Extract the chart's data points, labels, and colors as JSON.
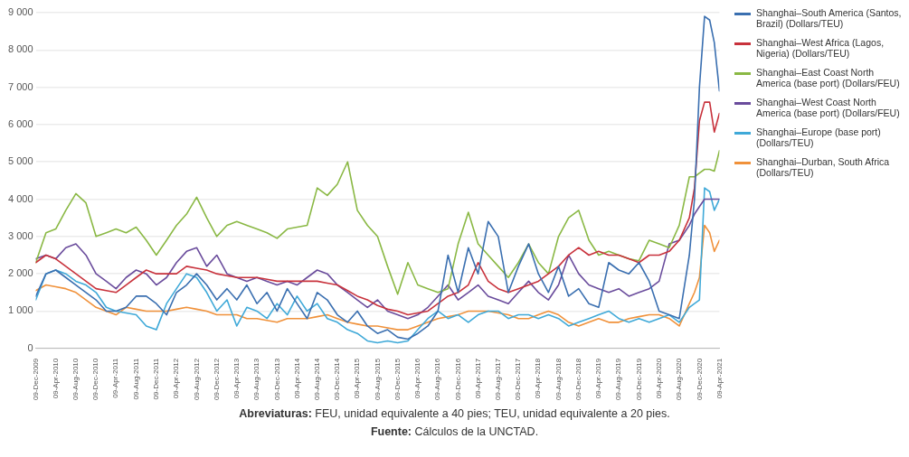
{
  "chart_data": {
    "type": "line",
    "x": [
      "2009-12-09",
      "2010-02-09",
      "2010-04-09",
      "2010-06-09",
      "2010-08-09",
      "2010-10-09",
      "2010-12-09",
      "2011-02-09",
      "2011-04-09",
      "2011-06-09",
      "2011-08-09",
      "2011-10-09",
      "2011-12-09",
      "2012-02-09",
      "2012-04-09",
      "2012-06-09",
      "2012-08-09",
      "2012-10-09",
      "2012-12-09",
      "2013-02-09",
      "2013-04-09",
      "2013-06-09",
      "2013-08-09",
      "2013-10-09",
      "2013-12-09",
      "2014-02-09",
      "2014-04-09",
      "2014-06-09",
      "2014-08-09",
      "2014-10-09",
      "2014-12-09",
      "2015-02-09",
      "2015-04-09",
      "2015-06-09",
      "2015-08-09",
      "2015-10-09",
      "2015-12-09",
      "2016-02-09",
      "2016-04-09",
      "2016-06-09",
      "2016-08-09",
      "2016-10-09",
      "2016-12-09",
      "2017-02-09",
      "2017-04-09",
      "2017-06-09",
      "2017-08-09",
      "2017-10-09",
      "2017-12-09",
      "2018-02-09",
      "2018-04-09",
      "2018-06-09",
      "2018-08-09",
      "2018-10-09",
      "2018-12-09",
      "2019-02-09",
      "2019-04-09",
      "2019-06-09",
      "2019-08-09",
      "2019-10-09",
      "2019-12-09",
      "2020-02-09",
      "2020-04-09",
      "2020-06-09",
      "2020-08-09",
      "2020-10-09",
      "2020-11-09",
      "2020-12-09",
      "2021-01-09",
      "2021-02-09",
      "2021-03-09",
      "2021-04-09"
    ],
    "series": [
      {
        "name": "Shanghai–South America (Santos, Brazil) (Dollars/TEU)",
        "color": "#3a6fb0",
        "values": [
          1400,
          2000,
          2100,
          1900,
          1700,
          1500,
          1300,
          1000,
          1000,
          1100,
          1400,
          1400,
          1200,
          900,
          1500,
          1700,
          2000,
          1700,
          1300,
          1600,
          1300,
          1700,
          1200,
          1500,
          1000,
          1600,
          1200,
          800,
          1500,
          1300,
          900,
          700,
          1000,
          600,
          400,
          500,
          300,
          250,
          400,
          600,
          1000,
          2500,
          1500,
          2700,
          2000,
          3400,
          3000,
          1500,
          2200,
          2800,
          2000,
          1500,
          2200,
          1400,
          1600,
          1200,
          1100,
          2300,
          2100,
          2000,
          2300,
          1800,
          1000,
          900,
          800,
          2500,
          4000,
          7000,
          8900,
          8800,
          8200,
          6900
        ]
      },
      {
        "name": "Shanghai–West Africa (Lagos, Nigeria) (Dollars/TEU)",
        "color": "#c8323c",
        "values": [
          2300,
          2500,
          2400,
          2200,
          2000,
          1800,
          1600,
          1550,
          1500,
          1700,
          1900,
          2100,
          2000,
          2000,
          2000,
          2200,
          2150,
          2100,
          2000,
          1950,
          1900,
          1900,
          1900,
          1850,
          1800,
          1800,
          1800,
          1800,
          1800,
          1750,
          1700,
          1550,
          1400,
          1300,
          1150,
          1050,
          1000,
          900,
          950,
          1000,
          1200,
          1400,
          1500,
          1700,
          2300,
          1800,
          1600,
          1500,
          1600,
          1700,
          1800,
          2000,
          2200,
          2500,
          2700,
          2500,
          2600,
          2500,
          2500,
          2400,
          2300,
          2500,
          2500,
          2600,
          2900,
          3500,
          4300,
          6100,
          6600,
          6600,
          5800,
          6300
        ]
      },
      {
        "name": "Shanghai–East Coast North America (base port) (Dollars/FEU)",
        "color": "#8ab844",
        "values": [
          2300,
          3100,
          3200,
          3700,
          4150,
          3900,
          3000,
          3100,
          3200,
          3100,
          3250,
          2900,
          2500,
          2900,
          3300,
          3600,
          4050,
          3500,
          3000,
          3300,
          3400,
          3300,
          3200,
          3100,
          2950,
          3200,
          3250,
          3300,
          4300,
          4100,
          4400,
          5000,
          3700,
          3300,
          3000,
          2200,
          1450,
          2300,
          1700,
          1600,
          1500,
          1600,
          2800,
          3650,
          2800,
          2500,
          2200,
          1900,
          2300,
          2800,
          2300,
          2000,
          3000,
          3500,
          3700,
          2900,
          2500,
          2600,
          2500,
          2400,
          2350,
          2900,
          2800,
          2700,
          3300,
          4600,
          4600,
          4700,
          4800,
          4800,
          4750,
          5300
        ]
      },
      {
        "name": "Shanghai–West Coast North America (base port) (Dollars/FEU)",
        "color": "#6a4c9c",
        "values": [
          2400,
          2500,
          2400,
          2700,
          2800,
          2500,
          2000,
          1800,
          1600,
          1900,
          2100,
          2000,
          1700,
          1900,
          2300,
          2600,
          2700,
          2200,
          2500,
          2000,
          1900,
          1800,
          1900,
          1800,
          1700,
          1800,
          1700,
          1900,
          2100,
          2000,
          1700,
          1500,
          1300,
          1100,
          1300,
          1000,
          900,
          800,
          900,
          1100,
          1400,
          1700,
          1300,
          1500,
          1700,
          1400,
          1300,
          1200,
          1500,
          1800,
          1500,
          1300,
          1700,
          2500,
          2000,
          1700,
          1600,
          1500,
          1600,
          1400,
          1500,
          1600,
          1800,
          2800,
          2900,
          3300,
          3600,
          3800,
          4000,
          4000,
          4000,
          4000
        ]
      },
      {
        "name": "Shanghai–Europe (base port) (Dollars/TEU)",
        "color": "#3fa9d8",
        "values": [
          1300,
          2000,
          2100,
          2000,
          1800,
          1700,
          1500,
          1100,
          1000,
          950,
          900,
          600,
          500,
          1200,
          1600,
          2000,
          1900,
          1500,
          1000,
          1300,
          600,
          1100,
          1000,
          800,
          1200,
          900,
          1400,
          1000,
          1200,
          800,
          700,
          500,
          400,
          200,
          150,
          200,
          150,
          200,
          500,
          800,
          1000,
          800,
          900,
          700,
          900,
          1000,
          1000,
          800,
          900,
          900,
          800,
          900,
          800,
          600,
          700,
          800,
          900,
          1000,
          800,
          700,
          800,
          700,
          800,
          900,
          700,
          1100,
          1200,
          1300,
          4300,
          4200,
          3700,
          4000
        ]
      },
      {
        "name": "Shanghai–Durban, South Africa (Dollars/TEU)",
        "color": "#f0913a",
        "values": [
          1550,
          1700,
          1650,
          1600,
          1500,
          1300,
          1100,
          1000,
          900,
          1100,
          1050,
          1000,
          1000,
          1000,
          1050,
          1100,
          1050,
          1000,
          900,
          900,
          900,
          800,
          800,
          750,
          700,
          800,
          800,
          800,
          850,
          900,
          800,
          700,
          650,
          600,
          600,
          550,
          500,
          500,
          600,
          700,
          800,
          850,
          900,
          1000,
          1000,
          1000,
          950,
          900,
          800,
          800,
          900,
          1000,
          900,
          700,
          600,
          700,
          800,
          700,
          700,
          800,
          850,
          900,
          900,
          800,
          600,
          1200,
          1500,
          1900,
          3300,
          3100,
          2600,
          2900
        ]
      }
    ],
    "xlim": [
      "2009-12-09",
      "2021-04-09"
    ],
    "xticks": [
      {
        "value": "2009-12-09",
        "label": "09-Dec-2009"
      },
      {
        "value": "2010-04-09",
        "label": "09-Apr-2010"
      },
      {
        "value": "2010-08-09",
        "label": "09-Aug-2010"
      },
      {
        "value": "2010-12-09",
        "label": "09-Dec-2010"
      },
      {
        "value": "2011-04-09",
        "label": "09-Apr-2011"
      },
      {
        "value": "2011-08-09",
        "label": "09-Aug-2011"
      },
      {
        "value": "2011-12-09",
        "label": "09-Dec-2011"
      },
      {
        "value": "2012-04-09",
        "label": "09-Apr-2012"
      },
      {
        "value": "2012-08-09",
        "label": "09-Aug-2012"
      },
      {
        "value": "2012-12-09",
        "label": "09-Dec-2012"
      },
      {
        "value": "2013-04-09",
        "label": "09-Apr-2013"
      },
      {
        "value": "2013-08-09",
        "label": "09-Aug-2013"
      },
      {
        "value": "2013-12-09",
        "label": "09-Dec-2013"
      },
      {
        "value": "2014-04-09",
        "label": "09-Apr-2014"
      },
      {
        "value": "2014-08-09",
        "label": "09-Aug-2014"
      },
      {
        "value": "2014-12-09",
        "label": "09-Dec-2014"
      },
      {
        "value": "2015-04-09",
        "label": "09-Apr-2015"
      },
      {
        "value": "2015-08-09",
        "label": "09-Aug-2015"
      },
      {
        "value": "2015-12-09",
        "label": "09-Dec-2015"
      },
      {
        "value": "2016-04-09",
        "label": "09-Apr-2016"
      },
      {
        "value": "2016-08-09",
        "label": "09-Aug-2016"
      },
      {
        "value": "2016-12-09",
        "label": "09-Dec-2016"
      },
      {
        "value": "2017-04-09",
        "label": "09-Apr-2017"
      },
      {
        "value": "2017-08-09",
        "label": "09-Aug-2017"
      },
      {
        "value": "2017-12-09",
        "label": "09-Dec-2017"
      },
      {
        "value": "2018-04-09",
        "label": "09-Apr-2018"
      },
      {
        "value": "2018-08-09",
        "label": "09-Aug-2018"
      },
      {
        "value": "2018-12-09",
        "label": "09-Dec-2018"
      },
      {
        "value": "2019-04-09",
        "label": "09-Apr-2019"
      },
      {
        "value": "2019-08-09",
        "label": "09-Aug-2019"
      },
      {
        "value": "2019-12-09",
        "label": "09-Dec-2019"
      },
      {
        "value": "2020-04-09",
        "label": "09-Apr-2020"
      },
      {
        "value": "2020-08-09",
        "label": "09-Aug-2020"
      },
      {
        "value": "2020-12-09",
        "label": "09-Dec-2020"
      },
      {
        "value": "2021-04-09",
        "label": "09-Apr-2021"
      }
    ],
    "ylim": [
      0,
      9000
    ],
    "yticks": [
      {
        "value": 0,
        "label": "0"
      },
      {
        "value": 1000,
        "label": "1 000"
      },
      {
        "value": 2000,
        "label": "2 000"
      },
      {
        "value": 3000,
        "label": "3 000"
      },
      {
        "value": 4000,
        "label": "4 000"
      },
      {
        "value": 5000,
        "label": "5 000"
      },
      {
        "value": 6000,
        "label": "6 000"
      },
      {
        "value": 7000,
        "label": "7 000"
      },
      {
        "value": 8000,
        "label": "8 000"
      },
      {
        "value": 9000,
        "label": "9 000"
      }
    ],
    "grid": "y",
    "legend": "right",
    "marker": "none",
    "line_style": "solid",
    "annotations": [
      "Abreviaturas: FEU, unidad equivalente a 40 pies; TEU, unidad equivalente a 20 pies.",
      "Fuente: Cálculos de la UNCTAD."
    ]
  }
}
